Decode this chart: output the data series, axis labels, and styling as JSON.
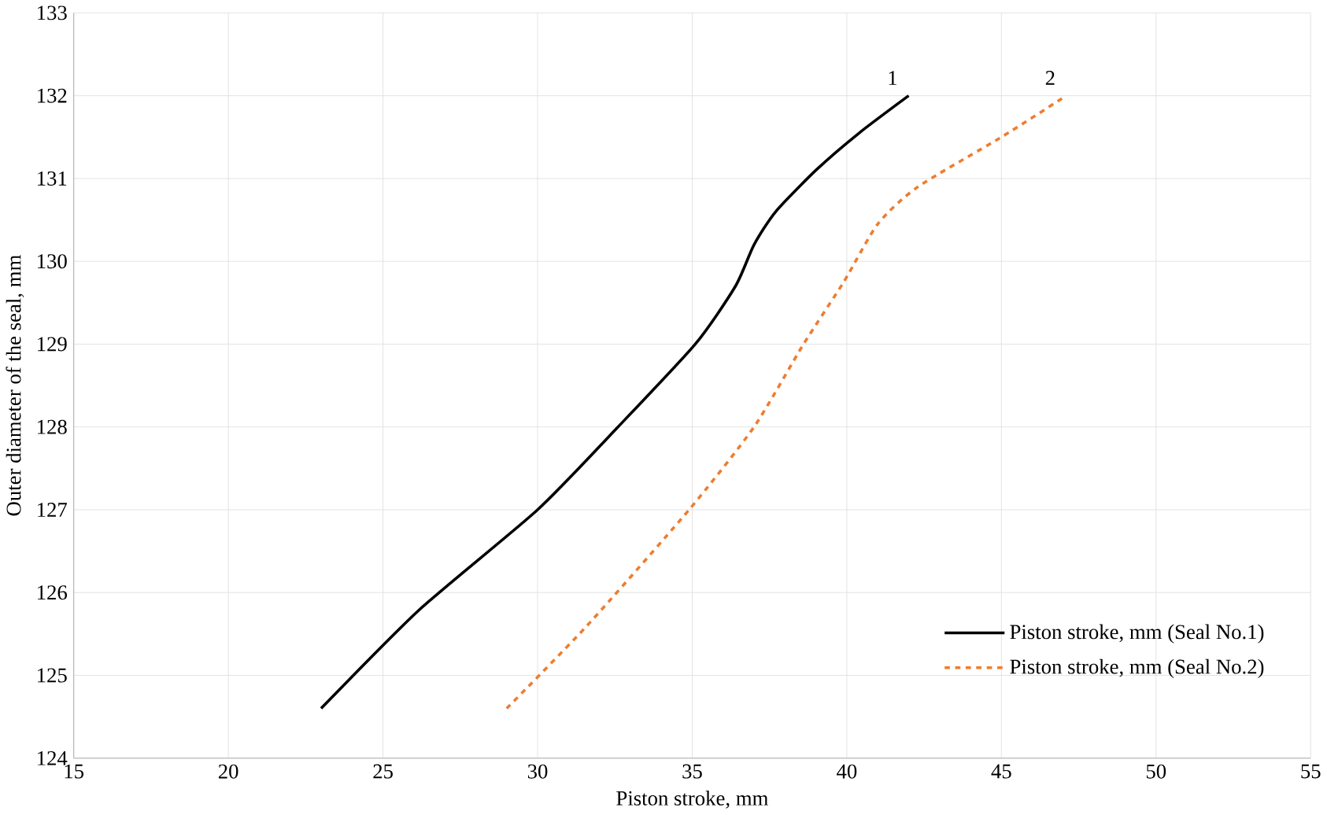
{
  "chart_data": {
    "type": "line",
    "xlabel": "Piston stroke, mm",
    "ylabel": "Outer diameter of the seal, mm",
    "xlim": [
      15,
      55
    ],
    "xticks": [
      15,
      20,
      25,
      30,
      35,
      40,
      45,
      50,
      55
    ],
    "ylim": [
      124,
      133
    ],
    "yticks": [
      124,
      125,
      126,
      127,
      128,
      129,
      130,
      131,
      132,
      133
    ],
    "grid": true,
    "legend": "bottom right",
    "series": [
      {
        "name": "Piston stroke, mm (Seal No.1)",
        "color": "#000000",
        "line_style": "solid",
        "x": [
          23,
          26.2,
          30,
          32.6,
          35.1,
          36.4,
          37,
          37.7,
          39,
          40.4,
          42
        ],
        "values": [
          124.6,
          125.8,
          127.0,
          128.0,
          129.0,
          129.7,
          130.2,
          130.6,
          131.1,
          131.55,
          132
        ]
      },
      {
        "name": "Piston stroke, mm (Seal No.2)",
        "color": "#ed7d31",
        "line_style": "dashed",
        "x": [
          29,
          31.6,
          34.9,
          37,
          38.6,
          39.9,
          41,
          42.3,
          45,
          47.1
        ],
        "values": [
          124.6,
          125.6,
          127.0,
          128.0,
          129.0,
          129.75,
          130.45,
          130.9,
          131.5,
          132
        ]
      }
    ],
    "annotations": [
      "1",
      "2"
    ]
  }
}
